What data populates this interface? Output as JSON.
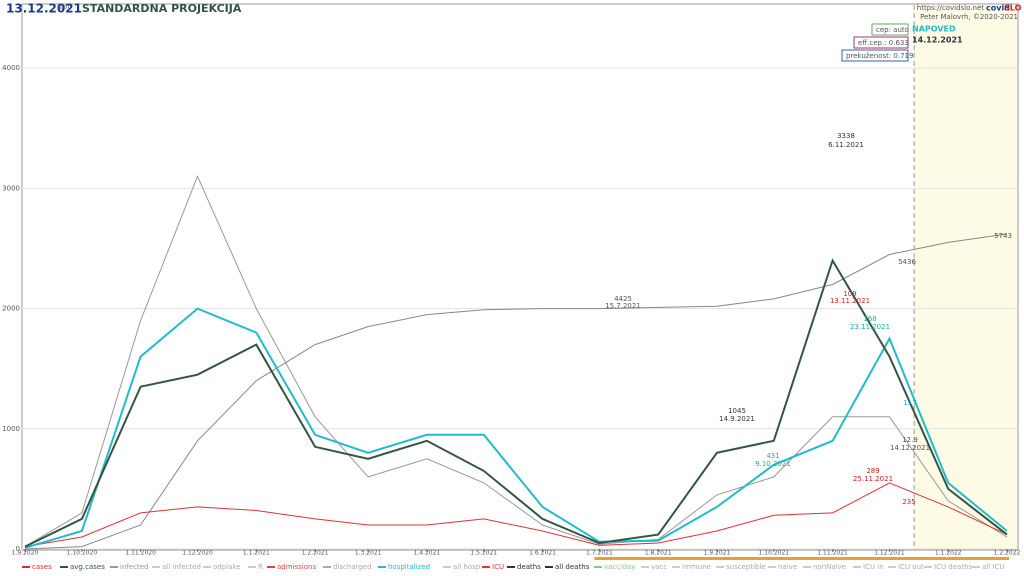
{
  "chart_data": {
    "type": "line",
    "title": "STANDARDNA PROJEKCIJA",
    "date": "13.12.2021",
    "weekday": "pon",
    "url": "https://covidslo.net",
    "brand": [
      "covid",
      "SLO"
    ],
    "author": "Peter Malovrh, ©2020-2021",
    "forecast_label": "NAPOVED",
    "forecast_date": "14.12.2021",
    "params": [
      "cep: auto",
      "eff.cep.: 0.633",
      "prekuženost: 0.719"
    ],
    "x": [
      "1.9.2020",
      "1.10.2020",
      "1.11.2020",
      "1.12.2020",
      "1.1.2021",
      "1.2.2021",
      "1.3.2021",
      "1.4.2021",
      "1.5.2021",
      "1.6.2021",
      "1.7.2021",
      "1.8.2021",
      "1.9.2021",
      "1.10.2021",
      "1.11.2021",
      "1.12.2021",
      "1.1.2022",
      "1.2.2022"
    ],
    "xticks": [
      "1.9.2020",
      "1.10.2020",
      "1.11.2020",
      "1.12.2020",
      "1.1.2021",
      "1.2.2021",
      "1.3.2021",
      "1.4.2021",
      "1.5.2021",
      "1.6.2021",
      "1.7.2021",
      "1.8.2021",
      "1.9.2021",
      "1.10.2021",
      "1.11.2021",
      "1.12.2021",
      "1.1.2022",
      "1.2.2022"
    ],
    "ylim": [
      0,
      4500
    ],
    "yticks": [
      0,
      1000,
      2000,
      3000,
      4000
    ],
    "grid": true,
    "series": [
      {
        "name": "infected",
        "color": "#999999",
        "values": [
          20,
          300,
          1900,
          3100,
          2000,
          1100,
          600,
          750,
          550,
          200,
          40,
          80,
          450,
          600,
          1100,
          1100,
          400,
          100
        ]
      },
      {
        "name": "all deaths",
        "color": "#888888",
        "values": [
          0,
          20,
          200,
          900,
          1400,
          1700,
          1850,
          1950,
          1990,
          2000,
          2000,
          2010,
          2020,
          2080,
          2200,
          2450,
          2550,
          2620
        ]
      },
      {
        "name": "ICU",
        "color": "#dd3333",
        "values": [
          20,
          100,
          300,
          350,
          320,
          250,
          200,
          200,
          250,
          150,
          30,
          50,
          150,
          280,
          300,
          550,
          350,
          120
        ]
      },
      {
        "name": "hospitalized",
        "color": "#22bbcc",
        "values": [
          10,
          150,
          1600,
          2000,
          1800,
          950,
          800,
          950,
          950,
          350,
          60,
          70,
          350,
          700,
          900,
          1750,
          550,
          150
        ]
      },
      {
        "name": "avg.cases",
        "color": "#335544",
        "values": [
          20,
          250,
          1350,
          1450,
          1700,
          850,
          750,
          900,
          650,
          250,
          50,
          120,
          800,
          900,
          2400,
          1600,
          500,
          120
        ]
      }
    ],
    "legend": [
      {
        "name": "cases",
        "color": "#cc3333"
      },
      {
        "name": "avg.cases",
        "color": "#335544"
      },
      {
        "name": "infected",
        "color": "#999999"
      },
      {
        "name": "all infected",
        "color": "#cccccc"
      },
      {
        "name": "odplake",
        "color": "#cccccc"
      },
      {
        "name": "R",
        "color": "#cccccc"
      },
      {
        "name": "admissions",
        "color": "#dd4444"
      },
      {
        "name": "discharged",
        "color": "#aaaaaa"
      },
      {
        "name": "hospitalized",
        "color": "#22bbcc"
      },
      {
        "name": "all hosp.",
        "color": "#cccccc"
      },
      {
        "name": "ICU",
        "color": "#dd3333"
      },
      {
        "name": "deaths",
        "color": "#333333"
      },
      {
        "name": "all deaths",
        "color": "#333333"
      },
      {
        "name": "vacc/day",
        "color": "#88cc88"
      },
      {
        "name": "vacc",
        "color": "#cccccc"
      },
      {
        "name": "immune",
        "color": "#cccccc"
      },
      {
        "name": "susceptible",
        "color": "#cccccc"
      },
      {
        "name": "naive",
        "color": "#cccccc"
      },
      {
        "name": "nonNaive",
        "color": "#cccccc"
      },
      {
        "name": "ICU in",
        "color": "#cccccc"
      },
      {
        "name": "ICU out",
        "color": "#cccccc"
      },
      {
        "name": "ICU deaths",
        "color": "#cccccc"
      },
      {
        "name": "all ICU",
        "color": "#cccccc"
      }
    ],
    "annotations": [
      "3338",
      "6.11.2021",
      "1045",
      "14.9.2021",
      "4425",
      "15.7.2021",
      "5436",
      "5743",
      "109",
      "13.11.2021",
      "168",
      "23.11.2021",
      "431",
      "9.10.2021",
      "289",
      "25.11.2021",
      "235",
      "12.9",
      "14.12.2021",
      "117"
    ]
  }
}
